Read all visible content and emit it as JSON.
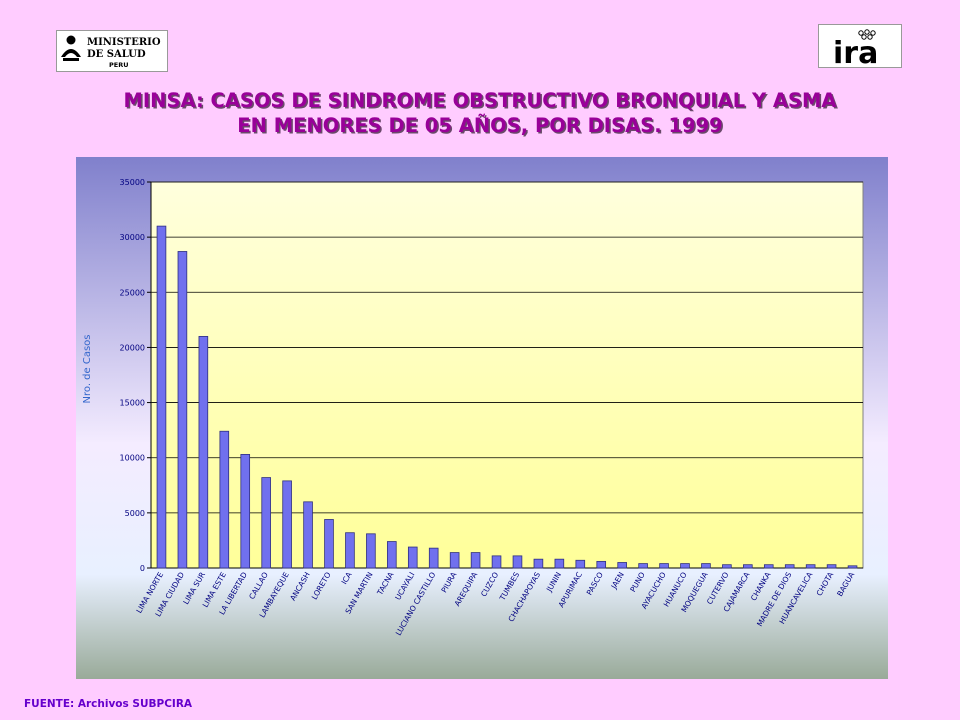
{
  "header": {
    "logo_left": {
      "icon": "ministerio-de-salud-logo",
      "lines": [
        "MINISTERIO",
        "DE SALUD",
        "PERU"
      ]
    },
    "logo_right": {
      "icon": "ira-logo",
      "text": "ira"
    }
  },
  "chart_data": {
    "type": "bar",
    "title": [
      "MINSA: CASOS DE SINDROME OBSTRUCTIVO BRONQUIAL Y ASMA",
      "EN MENORES DE 05 AÑOS, POR DISAS. 1999"
    ],
    "xlabel": "",
    "ylabel": "Nro. de Casos",
    "ylim": [
      0,
      35000
    ],
    "yticks": [
      0,
      5000,
      10000,
      15000,
      20000,
      25000,
      30000,
      35000
    ],
    "grid": true,
    "legend": "none",
    "colors": {
      "bar": "#7070ee",
      "bar_stroke": "#303080",
      "plot_bg_top": "#ffffcc",
      "plot_bg_bottom": "#ffffcc",
      "frame_top": "#8080cc",
      "frame_bottom": "#99aa99",
      "text": "#000080",
      "ylabel": "#3366cc"
    },
    "categories": [
      "LIMA NORTE",
      "LIMA CIUDAD",
      "LIMA SUR",
      "LIMA ESTE",
      "LA LIBERTAD",
      "CALLAO",
      "LAMBAYEQUE",
      "ANCASH",
      "LORETO",
      "ICA",
      "SAN MARTIN",
      "TACNA",
      "UCAYALI",
      "LUCIANO CASTILLO",
      "PIURA",
      "AREQUIPA",
      "CUZCO",
      "TUMBES",
      "CHACHAPOYAS",
      "JUNIN",
      "APURIMAC",
      "PASCO",
      "JAEN",
      "PUNO",
      "AYACUCHO",
      "HUANUCO",
      "MOQUEGUA",
      "CUTERVO",
      "CAJAMARCA",
      "CHANKA",
      "MADRE DE DIOS",
      "HUANCAVELICA",
      "CHOTA",
      "BAGUA"
    ],
    "values": [
      31000,
      28700,
      21000,
      12400,
      10300,
      8200,
      7900,
      6000,
      4400,
      3200,
      3100,
      2400,
      1900,
      1800,
      1400,
      1400,
      1100,
      1100,
      800,
      800,
      700,
      600,
      500,
      400,
      400,
      400,
      400,
      300,
      300,
      300,
      300,
      300,
      300,
      200
    ]
  },
  "footer": {
    "source": "FUENTE: Archivos SUBPCIRA"
  }
}
